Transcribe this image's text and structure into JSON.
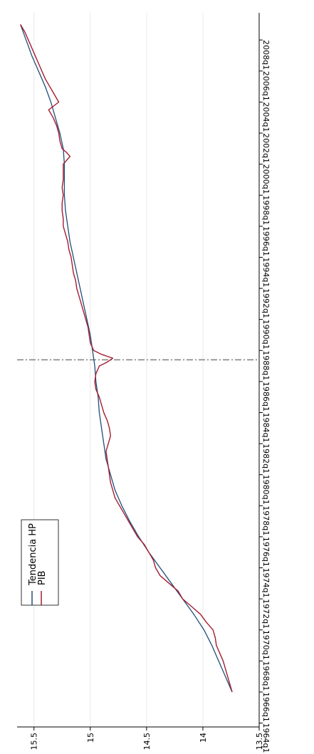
{
  "chart_data": {
    "type": "line",
    "orientation": "rotated-90-clockwise",
    "grid": true,
    "legend_placement": "bottom-left",
    "xlim": [
      1963.75,
      2009.75
    ],
    "ylim": [
      13.5,
      15.65
    ],
    "y_ticks": [
      {
        "value": 13.5,
        "label": "13.5"
      },
      {
        "value": 14,
        "label": "14"
      },
      {
        "value": 14.5,
        "label": "14.5"
      },
      {
        "value": 15,
        "label": "15"
      },
      {
        "value": 15.5,
        "label": "15.5"
      }
    ],
    "x_ticks": [
      {
        "value": 1964,
        "label": "1964q1"
      },
      {
        "value": 1966,
        "label": "1966q1"
      },
      {
        "value": 1968,
        "label": "1968q1"
      },
      {
        "value": 1970,
        "label": "1970q1"
      },
      {
        "value": 1972,
        "label": "1972q1"
      },
      {
        "value": 1974,
        "label": "1974q1"
      },
      {
        "value": 1976,
        "label": "1976q1"
      },
      {
        "value": 1978,
        "label": "1978q1"
      },
      {
        "value": 1980,
        "label": "1980q1"
      },
      {
        "value": 1982,
        "label": "1982q1"
      },
      {
        "value": 1984,
        "label": "1984q1"
      },
      {
        "value": 1986,
        "label": "1986q1"
      },
      {
        "value": 1988,
        "label": "1988q1"
      },
      {
        "value": 1990,
        "label": "1990q1"
      },
      {
        "value": 1992,
        "label": "1992q1"
      },
      {
        "value": 1994,
        "label": "1994q1"
      },
      {
        "value": 1996,
        "label": "1996q1"
      },
      {
        "value": 1998,
        "label": "1998q1"
      },
      {
        "value": 2000,
        "label": "2000q1"
      },
      {
        "value": 2002,
        "label": "2002q1"
      },
      {
        "value": 2004,
        "label": "2004q1"
      },
      {
        "value": 2006,
        "label": "2006q1"
      },
      {
        "value": 2008,
        "label": "2008q1"
      }
    ],
    "reference_line": {
      "x": 1987.4,
      "style": "dash-dot",
      "color": "#7f7f7f"
    },
    "series": [
      {
        "name": "Tendencia HP",
        "color": "#1f4e79",
        "x": [
          1966,
          1967,
          1968,
          1969,
          1970,
          1971,
          1972,
          1973,
          1974,
          1975,
          1976,
          1977,
          1978,
          1979,
          1980,
          1981,
          1982,
          1983,
          1984,
          1985,
          1986,
          1987,
          1988,
          1989,
          1990,
          1991,
          1992,
          1993,
          1994,
          1995,
          1996,
          1997,
          1998,
          1999,
          2000,
          2001,
          2002,
          2003,
          2004,
          2005,
          2006,
          2007,
          2008,
          2009
        ],
        "values": [
          13.74,
          13.8,
          13.86,
          13.92,
          13.99,
          14.08,
          14.18,
          14.28,
          14.38,
          14.48,
          14.57,
          14.65,
          14.72,
          14.78,
          14.82,
          14.86,
          14.88,
          14.9,
          14.92,
          14.93,
          14.95,
          14.96,
          14.98,
          15.0,
          15.03,
          15.06,
          15.09,
          15.12,
          15.15,
          15.18,
          15.2,
          15.22,
          15.23,
          15.23,
          15.23,
          15.24,
          15.27,
          15.31,
          15.35,
          15.4,
          15.46,
          15.52,
          15.57,
          15.62
        ]
      },
      {
        "name": "PIB",
        "color": "#a51c30",
        "x": [
          1966,
          1966.5,
          1967,
          1967.5,
          1968,
          1968.5,
          1969,
          1969.5,
          1970,
          1970.5,
          1971,
          1971.5,
          1972,
          1972.5,
          1973,
          1973.5,
          1974,
          1974.5,
          1975,
          1975.5,
          1976,
          1976.5,
          1977,
          1977.5,
          1978,
          1978.5,
          1979,
          1979.5,
          1980,
          1980.5,
          1981,
          1981.5,
          1982,
          1982.5,
          1983,
          1983.5,
          1984,
          1984.5,
          1985,
          1985.5,
          1986,
          1986.5,
          1987,
          1987.25,
          1987.5,
          1987.75,
          1988,
          1988.5,
          1989,
          1989.5,
          1990,
          1990.5,
          1991,
          1991.5,
          1992,
          1992.5,
          1993,
          1993.5,
          1994,
          1994.5,
          1995,
          1995.5,
          1996,
          1996.5,
          1997,
          1997.5,
          1998,
          1998.5,
          1999,
          1999.5,
          2000,
          2000.25,
          2000.5,
          2000.75,
          2001,
          2001.5,
          2002,
          2002.5,
          2003,
          2003.5,
          2004,
          2004.5,
          2005,
          2005.5,
          2006,
          2006.5,
          2007,
          2007.5,
          2008,
          2008.5,
          2009
        ],
        "values": [
          13.74,
          13.76,
          13.78,
          13.8,
          13.82,
          13.85,
          13.88,
          13.89,
          13.91,
          13.97,
          14.02,
          14.1,
          14.18,
          14.22,
          14.3,
          14.38,
          14.42,
          14.44,
          14.48,
          14.52,
          14.58,
          14.62,
          14.66,
          14.7,
          14.74,
          14.78,
          14.8,
          14.82,
          14.83,
          14.84,
          14.85,
          14.86,
          14.84,
          14.82,
          14.83,
          14.85,
          14.88,
          14.9,
          14.92,
          14.95,
          14.96,
          14.95,
          14.92,
          14.85,
          14.8,
          14.9,
          14.97,
          15.0,
          15.01,
          15.02,
          15.04,
          15.06,
          15.08,
          15.1,
          15.12,
          15.13,
          15.15,
          15.16,
          15.17,
          15.19,
          15.2,
          15.22,
          15.24,
          15.24,
          15.25,
          15.25,
          15.24,
          15.25,
          15.24,
          15.24,
          15.24,
          15.21,
          15.18,
          15.21,
          15.25,
          15.27,
          15.28,
          15.3,
          15.33,
          15.37,
          15.28,
          15.32,
          15.36,
          15.4,
          15.43,
          15.46,
          15.49,
          15.52,
          15.55,
          15.58,
          15.62
        ]
      }
    ]
  }
}
